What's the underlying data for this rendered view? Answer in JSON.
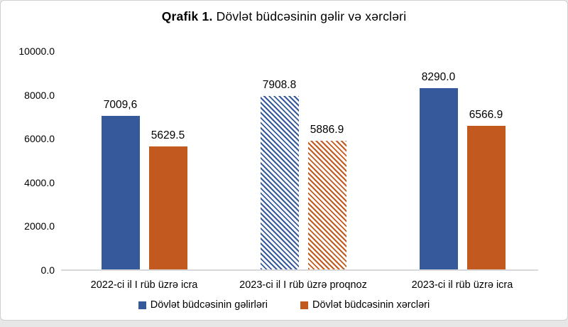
{
  "title": {
    "prefix": "Qrafik 1.",
    "rest": " Dövlət büdcəsinin gəlir və xərcləri"
  },
  "chart_data": {
    "type": "bar",
    "title": "Qrafik 1. Dövlət büdcəsinin gəlir və xərcləri",
    "categories": [
      "2022-ci il I rüb üzrə icra",
      "2023-ci il I rüb üzrə proqnoz",
      "2023-ci il rüb üzrə icra"
    ],
    "series": [
      {
        "name": "Dövlət büdcəsinin gəlirləri",
        "color": "#35599A",
        "values": [
          7009.6,
          7908.8,
          8290.0
        ],
        "value_labels": [
          "7009,6",
          "7908.8",
          "8290.0"
        ],
        "fill_styles": [
          "solid",
          "hatch",
          "solid"
        ]
      },
      {
        "name": "Dövlət büdcəsinin xərcləri",
        "color": "#C25A20",
        "values": [
          5629.5,
          5886.9,
          6566.9
        ],
        "value_labels": [
          "5629.5",
          "5886.9",
          "6566.9"
        ],
        "fill_styles": [
          "solid",
          "hatch",
          "solid"
        ]
      }
    ],
    "ylim": [
      0,
      10000
    ],
    "ytick_labels": [
      "0.0",
      "2000.0",
      "4000.0",
      "6000.0",
      "8000.0",
      "10000.0"
    ],
    "grid": false,
    "legend_position": "bottom",
    "hatch_note": "middle category (proqnoz) drawn with diagonal stripe pattern"
  }
}
